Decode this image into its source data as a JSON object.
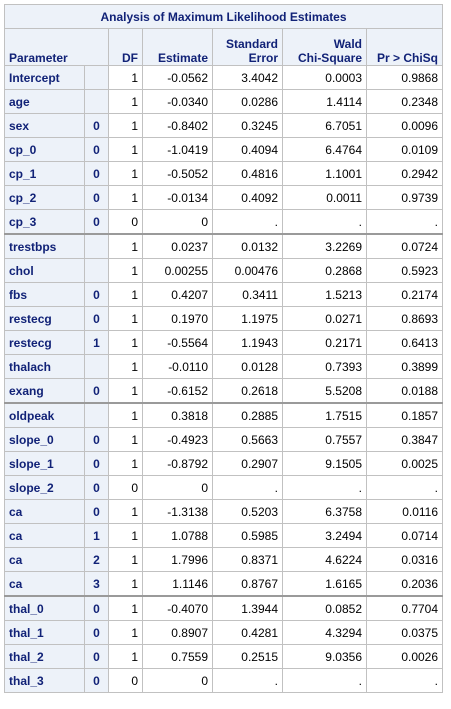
{
  "title": "Analysis of Maximum Likelihood Estimates",
  "headers": {
    "parameter": "Parameter",
    "df": "DF",
    "estimate": "Estimate",
    "stderr_1": "Standard",
    "stderr_2": "Error",
    "wald_1": "Wald",
    "wald_2": "Chi-Square",
    "p": "Pr > ChiSq"
  },
  "rows": [
    {
      "param": "Intercept",
      "level": "",
      "df": "1",
      "est": "-0.0562",
      "se": "3.4042",
      "wald": "0.0003",
      "p": "0.9868"
    },
    {
      "param": "age",
      "level": "",
      "df": "1",
      "est": "-0.0340",
      "se": "0.0286",
      "wald": "1.4114",
      "p": "0.2348"
    },
    {
      "param": "sex",
      "level": "0",
      "df": "1",
      "est": "-0.8402",
      "se": "0.3245",
      "wald": "6.7051",
      "p": "0.0096"
    },
    {
      "param": "cp_0",
      "level": "0",
      "df": "1",
      "est": "-1.0419",
      "se": "0.4094",
      "wald": "6.4764",
      "p": "0.0109"
    },
    {
      "param": "cp_1",
      "level": "0",
      "df": "1",
      "est": "-0.5052",
      "se": "0.4816",
      "wald": "1.1001",
      "p": "0.2942"
    },
    {
      "param": "cp_2",
      "level": "0",
      "df": "1",
      "est": "-0.0134",
      "se": "0.4092",
      "wald": "0.0011",
      "p": "0.9739"
    },
    {
      "param": "cp_3",
      "level": "0",
      "df": "0",
      "est": "0",
      "se": ".",
      "wald": ".",
      "p": "."
    },
    {
      "param": "trestbps",
      "level": "",
      "df": "1",
      "est": "0.0237",
      "se": "0.0132",
      "wald": "3.2269",
      "p": "0.0724"
    },
    {
      "param": "chol",
      "level": "",
      "df": "1",
      "est": "0.00255",
      "se": "0.00476",
      "wald": "0.2868",
      "p": "0.5923"
    },
    {
      "param": "fbs",
      "level": "0",
      "df": "1",
      "est": "0.4207",
      "se": "0.3411",
      "wald": "1.5213",
      "p": "0.2174"
    },
    {
      "param": "restecg",
      "level": "0",
      "df": "1",
      "est": "0.1970",
      "se": "1.1975",
      "wald": "0.0271",
      "p": "0.8693"
    },
    {
      "param": "restecg",
      "level": "1",
      "df": "1",
      "est": "-0.5564",
      "se": "1.1943",
      "wald": "0.2171",
      "p": "0.6413"
    },
    {
      "param": "thalach",
      "level": "",
      "df": "1",
      "est": "-0.0110",
      "se": "0.0128",
      "wald": "0.7393",
      "p": "0.3899"
    },
    {
      "param": "exang",
      "level": "0",
      "df": "1",
      "est": "-0.6152",
      "se": "0.2618",
      "wald": "5.5208",
      "p": "0.0188"
    },
    {
      "param": "oldpeak",
      "level": "",
      "df": "1",
      "est": "0.3818",
      "se": "0.2885",
      "wald": "1.7515",
      "p": "0.1857"
    },
    {
      "param": "slope_0",
      "level": "0",
      "df": "1",
      "est": "-0.4923",
      "se": "0.5663",
      "wald": "0.7557",
      "p": "0.3847"
    },
    {
      "param": "slope_1",
      "level": "0",
      "df": "1",
      "est": "-0.8792",
      "se": "0.2907",
      "wald": "9.1505",
      "p": "0.0025"
    },
    {
      "param": "slope_2",
      "level": "0",
      "df": "0",
      "est": "0",
      "se": ".",
      "wald": ".",
      "p": "."
    },
    {
      "param": "ca",
      "level": "0",
      "df": "1",
      "est": "-1.3138",
      "se": "0.5203",
      "wald": "6.3758",
      "p": "0.0116"
    },
    {
      "param": "ca",
      "level": "1",
      "df": "1",
      "est": "1.0788",
      "se": "0.5985",
      "wald": "3.2494",
      "p": "0.0714"
    },
    {
      "param": "ca",
      "level": "2",
      "df": "1",
      "est": "1.7996",
      "se": "0.8371",
      "wald": "4.6224",
      "p": "0.0316"
    },
    {
      "param": "ca",
      "level": "3",
      "df": "1",
      "est": "1.1146",
      "se": "0.8767",
      "wald": "1.6165",
      "p": "0.2036"
    },
    {
      "param": "thal_0",
      "level": "0",
      "df": "1",
      "est": "-0.4070",
      "se": "1.3944",
      "wald": "0.0852",
      "p": "0.7704"
    },
    {
      "param": "thal_1",
      "level": "0",
      "df": "1",
      "est": "0.8907",
      "se": "0.4281",
      "wald": "4.3294",
      "p": "0.0375"
    },
    {
      "param": "thal_2",
      "level": "0",
      "df": "1",
      "est": "0.7559",
      "se": "0.2515",
      "wald": "9.0356",
      "p": "0.0026"
    },
    {
      "param": "thal_3",
      "level": "0",
      "df": "0",
      "est": "0",
      "se": ".",
      "wald": ".",
      "p": "."
    }
  ],
  "group_separator_before": [
    7,
    14,
    22
  ],
  "colors": {
    "header_bg": "#edf2f9",
    "header_text": "#112277",
    "border": "#c1c1c1"
  }
}
